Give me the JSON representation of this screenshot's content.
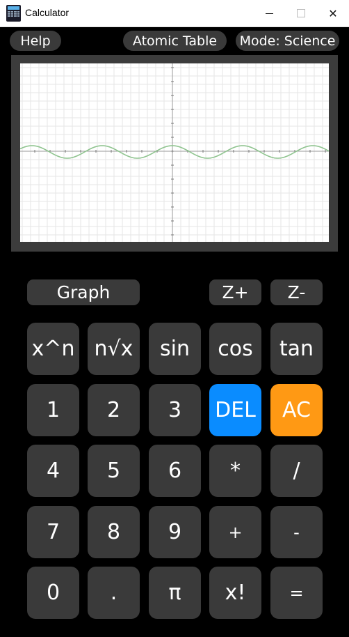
{
  "window": {
    "title": "Calculator",
    "minimize_glyph": "",
    "maximize_glyph": "",
    "close_glyph": "✕"
  },
  "top_buttons": {
    "help": "Help",
    "atomic_table": "Atomic Table",
    "mode": "Mode: Science"
  },
  "graph_controls": {
    "graph": "Graph",
    "zoom_in": "Z+",
    "zoom_out": "Z-"
  },
  "graph": {
    "curve_color": "#8fc48f",
    "grid_color": "#e6e6e6",
    "axis_color": "#9a9a9a",
    "function": "cos"
  },
  "keypad": {
    "row1": [
      "x^n",
      "n√x",
      "sin",
      "cos",
      "tan"
    ],
    "row2": [
      "1",
      "2",
      "3",
      "DEL",
      "AC"
    ],
    "row3": [
      "4",
      "5",
      "6",
      "*",
      "/"
    ],
    "row4": [
      "7",
      "8",
      "9",
      "+",
      "-"
    ],
    "row5": [
      "0",
      ".",
      "π",
      "x!",
      "="
    ]
  },
  "colors": {
    "del": "#0a8cff",
    "ac": "#ff9914",
    "key": "#3a3a3a"
  }
}
